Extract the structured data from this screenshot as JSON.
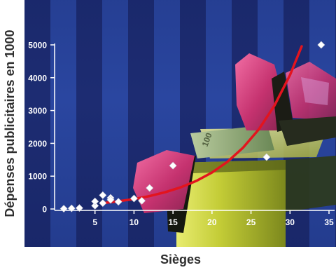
{
  "chart_data": {
    "type": "scatter",
    "title": "",
    "xlabel": "Sièges",
    "ylabel": "Dépenses publicitaires en 1000",
    "xlim": [
      0,
      35
    ],
    "ylim": [
      0,
      5000
    ],
    "x_ticks": [
      5,
      10,
      15,
      20,
      25,
      30,
      35
    ],
    "y_ticks": [
      0,
      1000,
      2000,
      3000,
      4000,
      5000
    ],
    "grid": false,
    "legend": "none",
    "series": [
      {
        "type": "scatter",
        "marker": "diamond",
        "color": "#ffffff",
        "points": [
          [
            1,
            10
          ],
          [
            2,
            20
          ],
          [
            3,
            30
          ],
          [
            5,
            100
          ],
          [
            5,
            230
          ],
          [
            6,
            180
          ],
          [
            6,
            420
          ],
          [
            7,
            340
          ],
          [
            7,
            280
          ],
          [
            8,
            220
          ],
          [
            10,
            320
          ],
          [
            11,
            250
          ],
          [
            12,
            640
          ],
          [
            15,
            1320
          ],
          [
            27,
            1580
          ],
          [
            34,
            5000
          ]
        ]
      },
      {
        "type": "line",
        "color": "#e3141e",
        "points": [
          [
            6,
            180
          ],
          [
            8,
            234
          ],
          [
            10,
            303
          ],
          [
            12,
            393
          ],
          [
            14,
            510
          ],
          [
            16,
            661
          ],
          [
            18,
            857
          ],
          [
            20,
            1112
          ],
          [
            22,
            1442
          ],
          [
            24,
            1871
          ],
          [
            26,
            2426
          ],
          [
            28,
            3147
          ],
          [
            30,
            4081
          ],
          [
            31.5,
            4957
          ]
        ]
      }
    ]
  },
  "illustration": {
    "banknote_label": "100"
  }
}
